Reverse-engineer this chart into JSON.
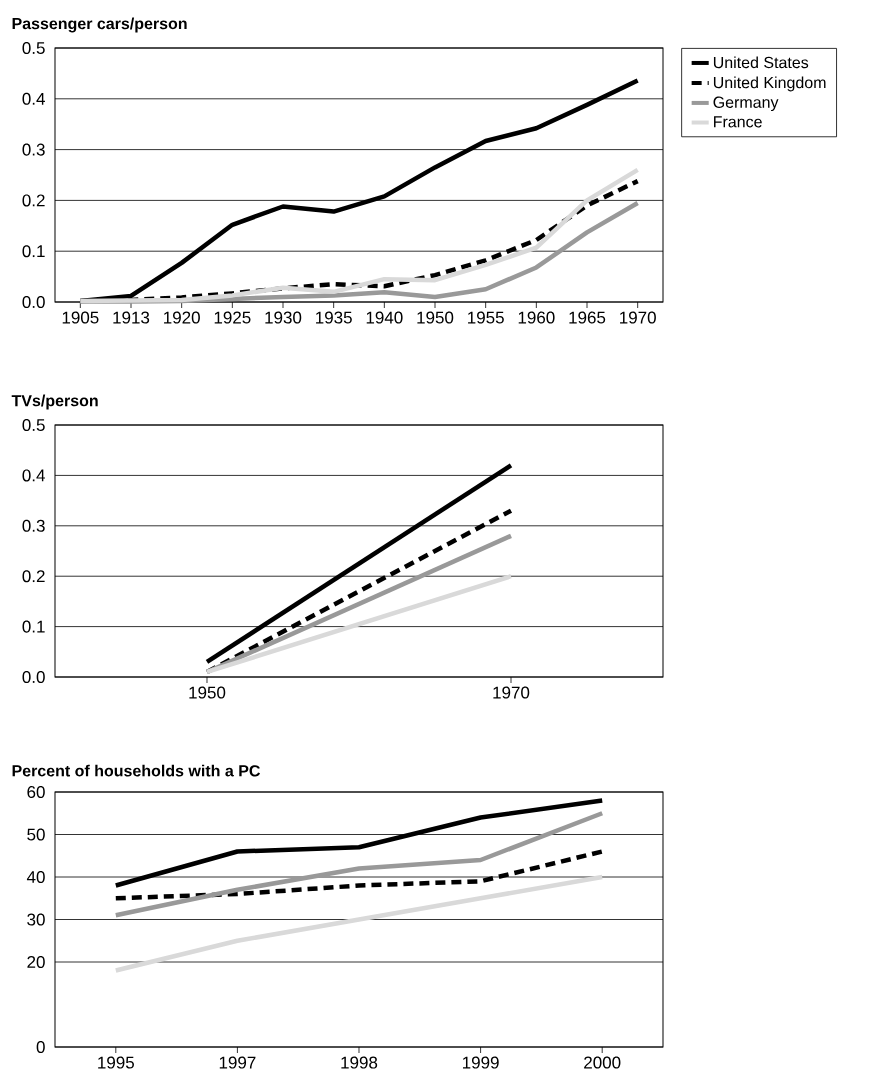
{
  "chart_data": [
    {
      "type": "line",
      "title": "Passenger cars/person",
      "categories": [
        "1905",
        "1913",
        "1920",
        "1925",
        "1930",
        "1935",
        "1940",
        "1950",
        "1955",
        "1960",
        "1965",
        "1970"
      ],
      "ylim": [
        0,
        0.5
      ],
      "yticks": [
        {
          "value": 0,
          "label": "0.0"
        },
        0.1,
        0.2,
        0.3,
        0.4,
        0.5
      ],
      "grid": "y",
      "legend": "top right",
      "marker": "none",
      "series": [
        {
          "name": "United States",
          "color": "#000000",
          "line_style": "solid",
          "values": [
            0.002,
            0.012,
            0.077,
            0.152,
            0.188,
            0.178,
            0.208,
            0.265,
            0.317,
            0.342,
            0.388,
            0.436
          ]
        },
        {
          "name": "United Kingdom",
          "color": "#000000",
          "line_style": "dashed",
          "values": [
            0.002,
            0.004,
            0.009,
            0.017,
            0.027,
            0.035,
            0.031,
            0.053,
            0.082,
            0.122,
            0.19,
            0.238
          ]
        },
        {
          "name": "Germany",
          "color": "#999999",
          "line_style": "solid",
          "values": [
            0.001,
            0.001,
            0.002,
            0.006,
            0.01,
            0.013,
            0.019,
            0.01,
            0.025,
            0.068,
            0.137,
            0.195
          ]
        },
        {
          "name": "France",
          "color": "#d9d9d9",
          "line_style": "solid",
          "values": [
            0.002,
            0.003,
            0.004,
            0.013,
            0.028,
            0.02,
            0.045,
            0.043,
            0.073,
            0.107,
            0.2,
            0.26
          ]
        }
      ]
    },
    {
      "type": "line",
      "title": "TVs/person",
      "x": [
        1950,
        1970
      ],
      "xlim": [
        1940,
        1980
      ],
      "xticks": [
        1950,
        1970
      ],
      "ylim": [
        0,
        0.5
      ],
      "yticks": [
        {
          "value": 0,
          "label": "0.0"
        },
        0.1,
        0.2,
        0.3,
        0.4,
        0.5
      ],
      "grid": "y",
      "marker": "none",
      "series": [
        {
          "color": "#000000",
          "line_style": "solid",
          "values": [
            0.03,
            0.42
          ]
        },
        {
          "color": "#000000",
          "line_style": "dashed",
          "values": [
            0.01,
            0.33
          ]
        },
        {
          "color": "#999999",
          "line_style": "solid",
          "values": [
            0.01,
            0.28
          ]
        },
        {
          "color": "#d9d9d9",
          "line_style": "solid",
          "values": [
            0.01,
            0.2
          ]
        }
      ]
    },
    {
      "type": "line",
      "title": "Percent of households with a PC",
      "categories": [
        "1995",
        "1997",
        "1998",
        "1999",
        "2000"
      ],
      "ylim": [
        0,
        60
      ],
      "yticks": [
        0,
        20,
        30,
        40,
        50,
        60
      ],
      "grid": "y",
      "marker": "none",
      "series": [
        {
          "color": "#000000",
          "line_style": "solid",
          "values": [
            38,
            46,
            47,
            54,
            58
          ]
        },
        {
          "color": "#000000",
          "line_style": "dashed",
          "values": [
            35,
            36,
            38,
            39,
            46
          ]
        },
        {
          "color": "#999999",
          "line_style": "solid",
          "values": [
            31,
            37,
            42,
            44,
            55
          ]
        },
        {
          "color": "#d9d9d9",
          "line_style": "solid",
          "values": [
            18,
            25,
            30,
            35,
            40
          ]
        }
      ]
    }
  ]
}
